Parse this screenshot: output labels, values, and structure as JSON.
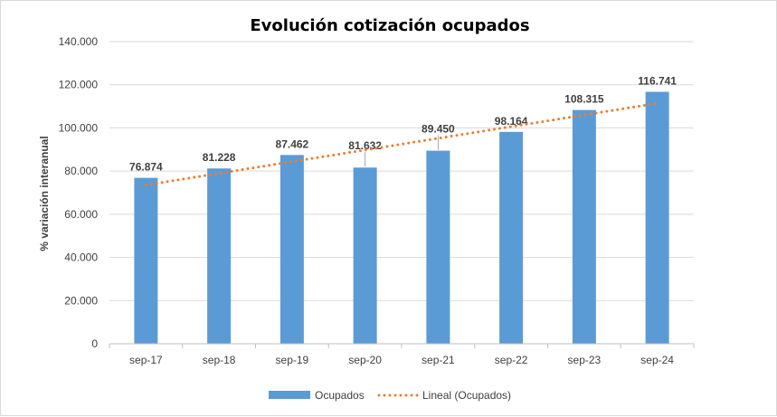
{
  "chart_data": {
    "type": "bar",
    "title": "Evolución cotización ocupados",
    "xlabel": "",
    "ylabel": "% variación interanual",
    "categories": [
      "sep-17",
      "sep-18",
      "sep-19",
      "sep-20",
      "sep-21",
      "sep-22",
      "sep-23",
      "sep-24"
    ],
    "series": [
      {
        "name": "Ocupados",
        "values": [
          76874,
          81228,
          87462,
          81632,
          89450,
          98164,
          108315,
          116741
        ],
        "value_labels": [
          "76.874",
          "81.228",
          "87.462",
          "81.632",
          "89.450",
          "98.164",
          "108.315",
          "116.741"
        ],
        "color": "#5b9bd5"
      }
    ],
    "trendline": {
      "name": "Lineal (Ocupados)",
      "type": "linear",
      "color": "#ed7d31",
      "style": "dotted"
    },
    "ylim": [
      0,
      140000
    ],
    "yticks": [
      0,
      20000,
      40000,
      60000,
      80000,
      100000,
      120000,
      140000
    ],
    "ytick_labels": [
      "0",
      "20.000",
      "40.000",
      "60.000",
      "80.000",
      "100.000",
      "120.000",
      "140.000"
    ],
    "grid": true,
    "legend_position": "bottom"
  }
}
